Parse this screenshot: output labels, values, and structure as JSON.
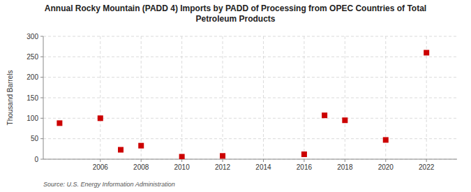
{
  "chart_data": {
    "type": "scatter",
    "title": "Annual Rocky Mountain (PADD 4) Imports by PADD of Processing from OPEC Countries of Total\nPetroleum Products",
    "ylabel": "Thousand Barrels",
    "annotations": [
      "Source: U.S. Energy Information Administration"
    ],
    "x": [
      2004,
      2006,
      2007,
      2008,
      2010,
      2012,
      2016,
      2017,
      2018,
      2020,
      2022
    ],
    "values": [
      88,
      100,
      23,
      33,
      6,
      8,
      12,
      107,
      95,
      47,
      260
    ],
    "color": "#cc0000",
    "marker": "square",
    "xlim": [
      2003.2,
      2023.5
    ],
    "ylim": [
      0,
      300
    ],
    "xticks": [
      2006,
      2008,
      2010,
      2012,
      2014,
      2016,
      2018,
      2020,
      2022
    ],
    "yticks": [
      0,
      50,
      100,
      150,
      200,
      250,
      300
    ],
    "grid": true
  }
}
